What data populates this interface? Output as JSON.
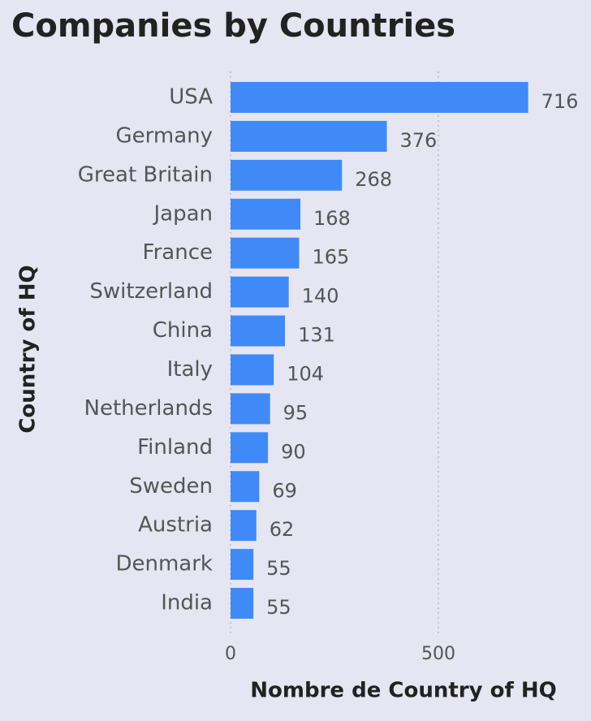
{
  "chart_data": {
    "type": "bar",
    "orientation": "horizontal",
    "title": "Companies by Countries",
    "categories": [
      "USA",
      "Germany",
      "Great Britain",
      "Japan",
      "France",
      "Switzerland",
      "China",
      "Italy",
      "Netherlands",
      "Finland",
      "Sweden",
      "Austria",
      "Denmark",
      "India"
    ],
    "values": [
      716,
      376,
      268,
      168,
      165,
      140,
      131,
      104,
      95,
      90,
      69,
      62,
      55,
      55
    ],
    "color": "#3f8af6",
    "x_label": "Nombre de Country of HQ",
    "y_label": "Country of HQ",
    "xlim": [
      0,
      800
    ],
    "xticks": [
      0,
      500
    ],
    "grid": true
  }
}
